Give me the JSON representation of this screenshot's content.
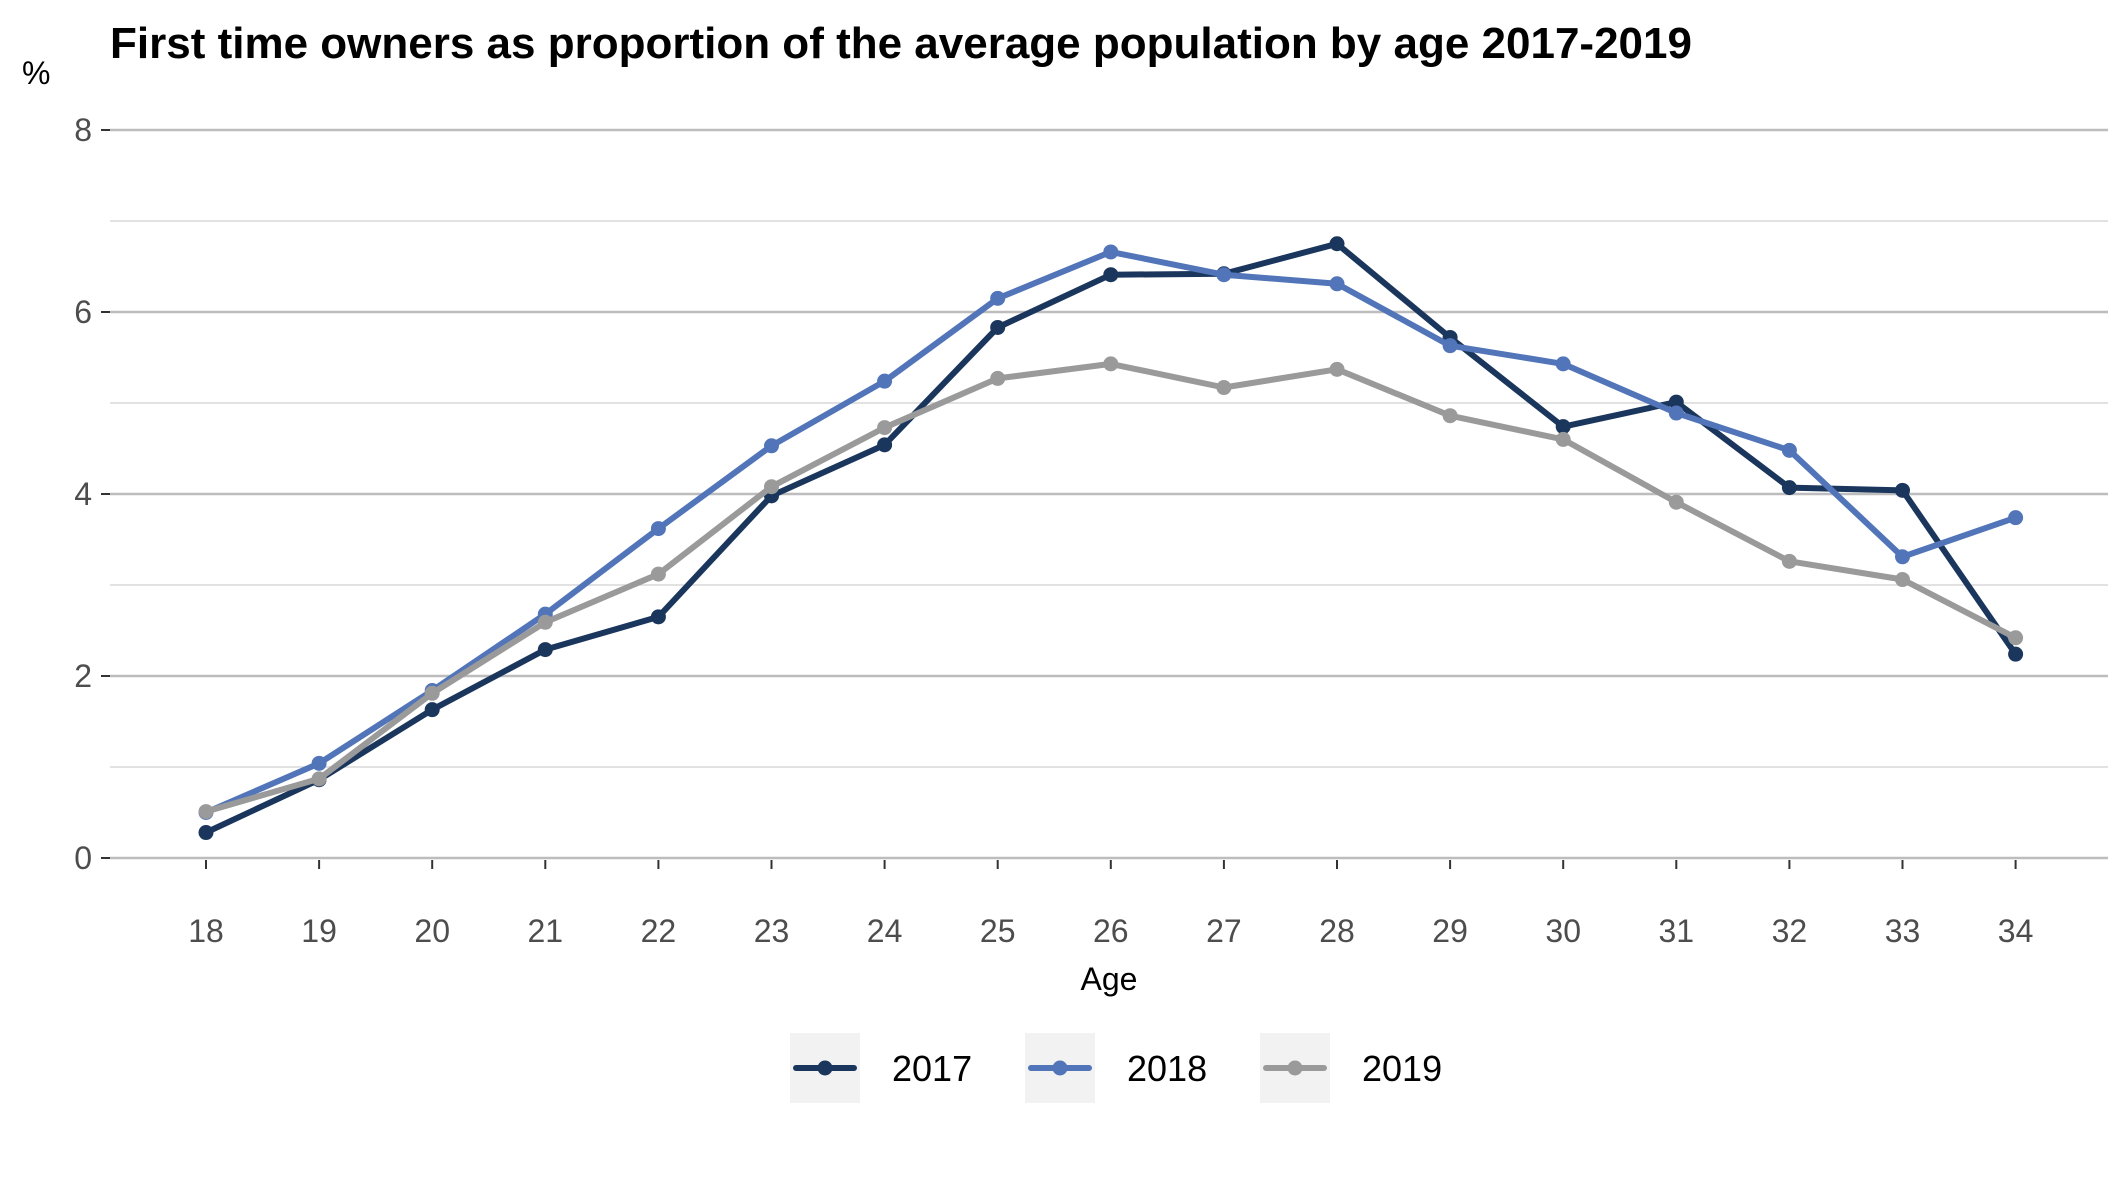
{
  "chart_data": {
    "type": "line",
    "title": "First time owners as proportion of the average population by age 2017-2019",
    "ylabel": "%",
    "xlabel": "Age",
    "ylim": [
      0,
      8
    ],
    "yticks": [
      0,
      2,
      4,
      6,
      8
    ],
    "x": [
      18,
      19,
      20,
      21,
      22,
      23,
      24,
      25,
      26,
      27,
      28,
      29,
      30,
      31,
      32,
      33,
      34
    ],
    "grid": true,
    "legend_position": "bottom",
    "series": [
      {
        "name": "2017",
        "color": "#1b365d",
        "values": [
          0.28,
          0.86,
          1.63,
          2.29,
          2.65,
          3.98,
          4.54,
          5.83,
          6.41,
          6.42,
          6.75,
          5.72,
          4.74,
          5.01,
          4.07,
          4.04,
          2.24
        ]
      },
      {
        "name": "2018",
        "color": "#5175b8",
        "values": [
          0.5,
          1.04,
          1.84,
          2.68,
          3.62,
          4.53,
          5.24,
          6.15,
          6.66,
          6.41,
          6.31,
          5.63,
          5.43,
          4.89,
          4.48,
          3.31,
          3.74
        ]
      },
      {
        "name": "2019",
        "color": "#9a9a9a",
        "values": [
          0.51,
          0.87,
          1.81,
          2.59,
          3.12,
          4.08,
          4.73,
          5.27,
          5.43,
          5.17,
          5.37,
          4.86,
          4.6,
          3.91,
          3.26,
          3.06,
          2.42
        ]
      }
    ]
  }
}
